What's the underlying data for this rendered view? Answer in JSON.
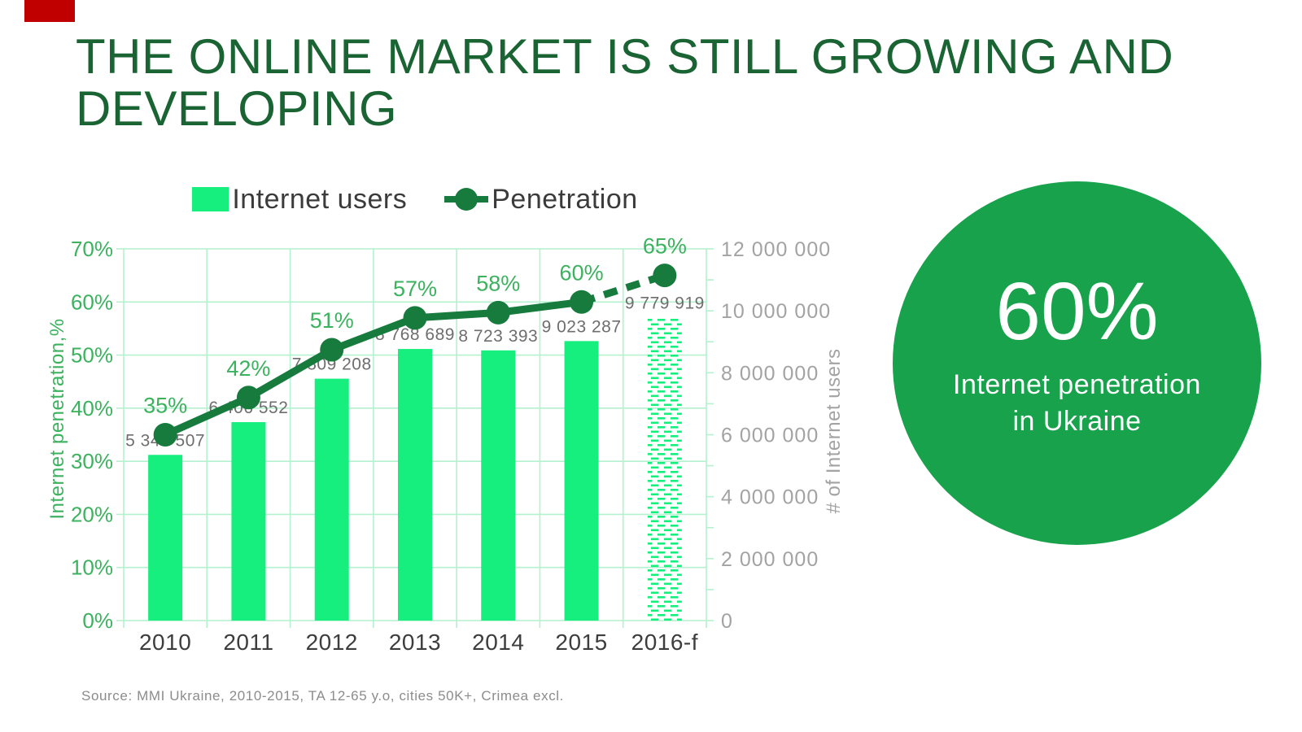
{
  "slide": {
    "title_lines": [
      "THE ONLINE MARKET IS STILL GROWING AND",
      "DEVELOPING"
    ],
    "source": "Source: MMI Ukraine, 2010-2015, TA 12-65 y.o, cities 50K+, Crimea excl."
  },
  "legend": {
    "bar_label": "Internet users",
    "line_label": "Penetration"
  },
  "highlight_circle": {
    "value": "60%",
    "caption_line1": "Internet penetration",
    "caption_line2": "in Ukraine"
  },
  "chart_data": {
    "type": "bar+line combo",
    "categories": [
      "2010",
      "2011",
      "2012",
      "2013",
      "2014",
      "2015",
      "2016-f"
    ],
    "series": [
      {
        "name": "Internet users",
        "type": "bar",
        "axis": "right",
        "values": [
          5349507,
          6406552,
          7809208,
          8768689,
          8723393,
          9023287,
          9779919
        ],
        "labels": [
          "5 349 507",
          "6 406 552",
          "7 809 208",
          "8 768 689",
          "8 723 393",
          "9 023 287",
          "9 779 919"
        ],
        "forecast_index": 6
      },
      {
        "name": "Penetration",
        "type": "line",
        "axis": "left",
        "values": [
          35,
          42,
          51,
          57,
          58,
          60,
          65
        ],
        "labels": [
          "35%",
          "42%",
          "51%",
          "57%",
          "58%",
          "60%",
          "65%"
        ],
        "forecast_index": 6
      }
    ],
    "left_axis": {
      "title": "Internet penetration,%",
      "min": 0,
      "max": 70,
      "ticks": [
        "0%",
        "10%",
        "20%",
        "30%",
        "40%",
        "50%",
        "60%",
        "70%"
      ]
    },
    "right_axis": {
      "title": "# of Internet users",
      "min": 0,
      "max": 12000000,
      "ticks": [
        "0",
        "2 000 000",
        "4 000 000",
        "6 000 000",
        "8 000 000",
        "10 000 000",
        "12 000 000"
      ]
    },
    "grid": true,
    "legend_position": "top"
  },
  "colors": {
    "bar_green": "#16EE7E",
    "line_green": "#177B3E",
    "label_green": "#3CB25F",
    "grid_green": "#B4F1CF",
    "title_green": "#1A6434",
    "circle_green": "#17A24B",
    "axis_gray": "#A3A3A3",
    "value_gray": "#6E6E6E",
    "text_dark": "#3D3D3D",
    "source_gray": "#8C8C8C",
    "red_marker": "#C00000"
  }
}
